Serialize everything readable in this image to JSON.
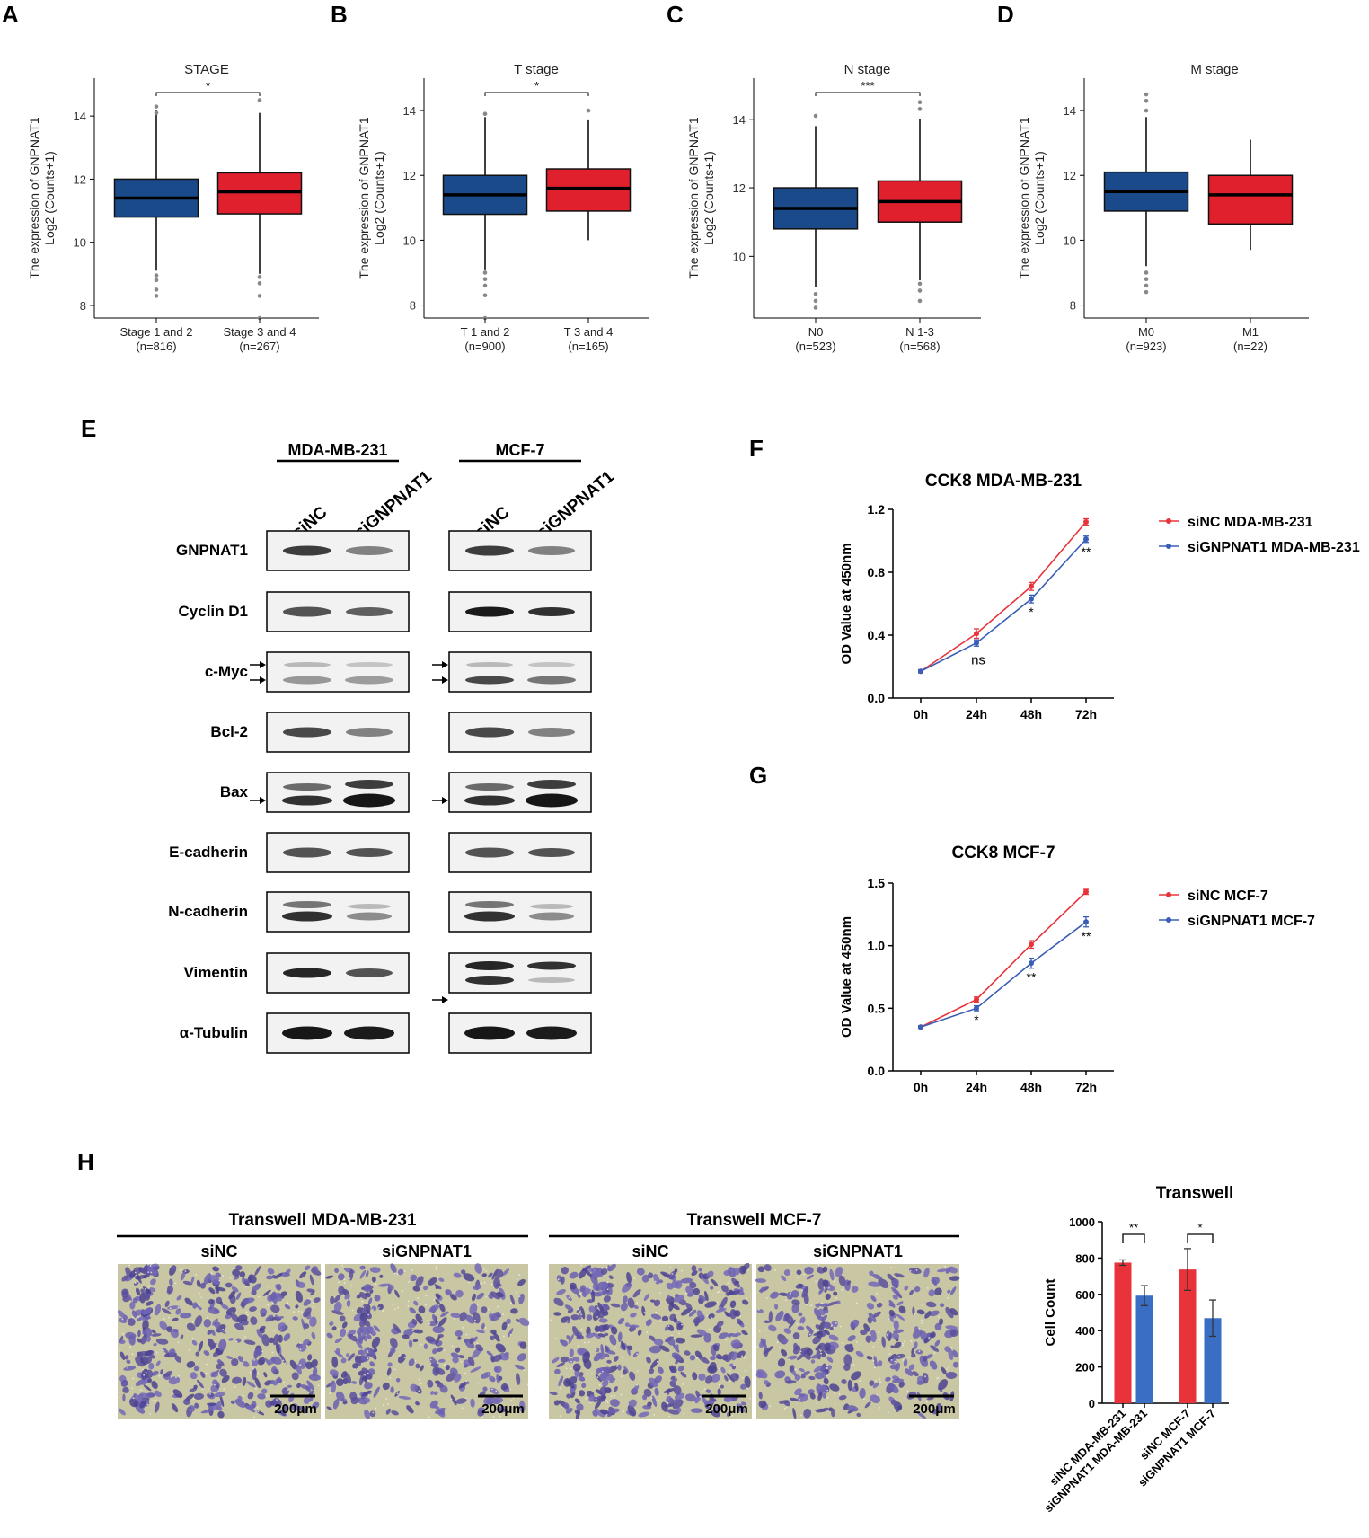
{
  "panel_letters": [
    "A",
    "B",
    "C",
    "D",
    "E",
    "F",
    "G",
    "H"
  ],
  "boxplots": {
    "ylabel_line1": "The expression of GNPNAT1",
    "ylabel_line2": "Log2 (Counts+1)"
  },
  "western": {
    "cell_lines": [
      "MDA-MB-231",
      "MCF-7"
    ],
    "lanes": [
      "siNC",
      "siGNPNAT1"
    ],
    "proteins": [
      "GNPNAT1",
      "Cyclin D1",
      "c-Myc",
      "Bcl-2",
      "Bax",
      "E-cadherin",
      "N-cadherin",
      "Vimentin",
      "α-Tubulin"
    ]
  },
  "transwell_images": {
    "headers": [
      "Transwell   MDA-MB-231",
      "Transwell   MCF-7"
    ],
    "sublabels": [
      "siNC",
      "siGNPNAT1",
      "siNC",
      "siGNPNAT1"
    ],
    "scale_bar": "200μm"
  },
  "chart_data": [
    {
      "type": "box",
      "title": "STAGE",
      "ylabel": "The expression of GNPNAT1 Log2 (Counts+1)",
      "ylim": [
        7.6,
        15.2
      ],
      "yticks": [
        8,
        10,
        12,
        14
      ],
      "categories": [
        "Stage 1 and 2",
        "Stage 3 and 4"
      ],
      "counts": [
        "(n=816)",
        "(n=267)"
      ],
      "colors": [
        "#1a4a8a",
        "#e0202c"
      ],
      "boxes": [
        {
          "q1": 10.8,
          "median": 11.4,
          "q3": 12.0,
          "whisker_low": 9.1,
          "whisker_high": 14.2,
          "outliers_low": [
            8.95,
            8.8,
            8.5,
            8.3
          ],
          "outliers_high": [
            14.3,
            14.1
          ]
        },
        {
          "q1": 10.9,
          "median": 11.6,
          "q3": 12.2,
          "whisker_low": 9.0,
          "whisker_high": 14.1,
          "outliers_low": [
            8.9,
            8.7,
            8.3,
            7.6
          ],
          "outliers_high": [
            14.5
          ]
        }
      ],
      "significance": "*"
    },
    {
      "type": "box",
      "title": "T stage",
      "ylabel": "The expression of GNPNAT1 Log2 (Counts+1)",
      "ylim": [
        7.6,
        15.0
      ],
      "yticks": [
        8,
        10,
        12,
        14
      ],
      "categories": [
        "T 1 and 2",
        "T 3 and 4"
      ],
      "counts": [
        "(n=900)",
        "(n=165)"
      ],
      "colors": [
        "#1a4a8a",
        "#e0202c"
      ],
      "boxes": [
        {
          "q1": 10.8,
          "median": 11.4,
          "q3": 12.0,
          "whisker_low": 9.1,
          "whisker_high": 13.8,
          "outliers_low": [
            9.0,
            8.8,
            8.6,
            8.3,
            7.6
          ],
          "outliers_high": [
            13.9
          ]
        },
        {
          "q1": 10.9,
          "median": 11.6,
          "q3": 12.2,
          "whisker_low": 10.0,
          "whisker_high": 13.7,
          "outliers_low": [],
          "outliers_high": [
            14.0
          ]
        }
      ],
      "significance": "*"
    },
    {
      "type": "box",
      "title": "N stage",
      "ylabel": "The expression of GNPNAT1 Log2 (Counts+1)",
      "ylim": [
        8.2,
        15.2
      ],
      "yticks": [
        10,
        12,
        14
      ],
      "categories": [
        "N0",
        "N 1-3"
      ],
      "counts": [
        "(n=523)",
        "(n=568)"
      ],
      "colors": [
        "#1a4a8a",
        "#e0202c"
      ],
      "boxes": [
        {
          "q1": 10.8,
          "median": 11.4,
          "q3": 12.0,
          "whisker_low": 9.1,
          "whisker_high": 13.8,
          "outliers_low": [
            8.9,
            8.7,
            8.5
          ],
          "outliers_high": [
            14.1
          ]
        },
        {
          "q1": 11.0,
          "median": 11.6,
          "q3": 12.2,
          "whisker_low": 9.3,
          "whisker_high": 14.0,
          "outliers_low": [
            9.2,
            9.0,
            8.7
          ],
          "outliers_high": [
            14.3,
            14.5
          ]
        }
      ],
      "significance": "***"
    },
    {
      "type": "box",
      "title": "M stage",
      "ylabel": "The expression of GNPNAT1 Log2 (Counts+1)",
      "ylim": [
        7.6,
        15.0
      ],
      "yticks": [
        8,
        10,
        12,
        14
      ],
      "categories": [
        "M0",
        "M1"
      ],
      "counts": [
        "(n=923)",
        "(n=22)"
      ],
      "colors": [
        "#1a4a8a",
        "#e0202c"
      ],
      "boxes": [
        {
          "q1": 10.9,
          "median": 11.5,
          "q3": 12.1,
          "whisker_low": 9.2,
          "whisker_high": 13.8,
          "outliers_low": [
            9.0,
            8.8,
            8.6,
            8.4
          ],
          "outliers_high": [
            14.0,
            14.3,
            14.5
          ]
        },
        {
          "q1": 10.5,
          "median": 11.4,
          "q3": 12.0,
          "whisker_low": 9.7,
          "whisker_high": 13.1,
          "outliers_low": [],
          "outliers_high": []
        }
      ],
      "significance": ""
    },
    {
      "type": "line",
      "title": "CCK8   MDA-MB-231",
      "ylabel": "OD Value at 450nm",
      "ylim": [
        0.0,
        1.2
      ],
      "yticks": [
        "0.0",
        "0.4",
        "0.8",
        "1.2"
      ],
      "x": [
        "0h",
        "24h",
        "48h",
        "72h"
      ],
      "series": [
        {
          "name": "siNC MDA-MB-231",
          "color": "#e8333a",
          "values": [
            0.17,
            0.41,
            0.71,
            1.12
          ],
          "err": [
            0.01,
            0.03,
            0.025,
            0.02
          ]
        },
        {
          "name": "siGNPNAT1 MDA-MB-231",
          "color": "#3a5eb8",
          "values": [
            0.17,
            0.35,
            0.63,
            1.01
          ],
          "err": [
            0.01,
            0.02,
            0.025,
            0.02
          ]
        }
      ],
      "annotations": [
        "",
        "ns",
        "*",
        "**"
      ]
    },
    {
      "type": "line",
      "title": "CCK8   MCF-7",
      "ylabel": "OD Value at 450nm",
      "ylim": [
        0.0,
        1.5
      ],
      "yticks": [
        "0.0",
        "0.5",
        "1.0",
        "1.5"
      ],
      "x": [
        "0h",
        "24h",
        "48h",
        "72h"
      ],
      "series": [
        {
          "name": "siNC MCF-7",
          "color": "#e8333a",
          "values": [
            0.35,
            0.57,
            1.01,
            1.43
          ],
          "err": [
            0.01,
            0.02,
            0.03,
            0.02
          ]
        },
        {
          "name": "siGNPNAT1 MCF-7",
          "color": "#3a5eb8",
          "values": [
            0.35,
            0.5,
            0.86,
            1.19
          ],
          "err": [
            0.01,
            0.02,
            0.04,
            0.04
          ]
        }
      ],
      "annotations": [
        "",
        "*",
        "**",
        "**"
      ]
    },
    {
      "type": "bar",
      "title": "Transwell",
      "ylabel": "Cell Count",
      "ylim": [
        0,
        1000
      ],
      "yticks": [
        0,
        200,
        400,
        600,
        800,
        1000
      ],
      "categories": [
        "siNC MDA-MB-231",
        "siGNPNAT1 MDA-MB-231",
        "siNC MCF-7",
        "siGNPNAT1 MCF-7"
      ],
      "values": [
        775,
        593,
        737,
        469
      ],
      "err": [
        15,
        55,
        115,
        100
      ],
      "colors": [
        "#e8333a",
        "#3a6ec4",
        "#e8333a",
        "#3a6ec4"
      ],
      "significance": [
        "**",
        "*"
      ]
    }
  ]
}
